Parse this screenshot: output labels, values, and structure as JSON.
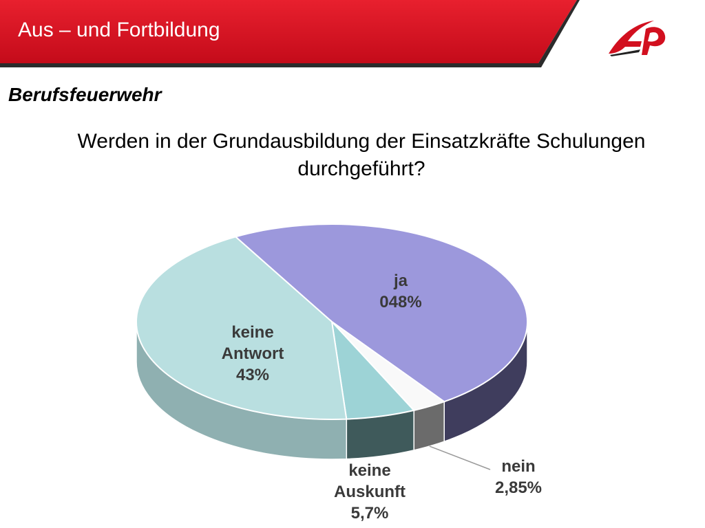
{
  "header": {
    "title": "Aus – und Fortbildung"
  },
  "section_title": "Berufsfeuerwehr",
  "question": "Werden in der Grundausbildung der Einsatzkräfte Schulungen durchgeführt?",
  "chart_data": {
    "type": "pie",
    "title": "",
    "slices": [
      {
        "key": "ja",
        "name": "ja",
        "display": "048%",
        "value": 48.45,
        "color": "#9c98dc",
        "side": "#3f3d5d"
      },
      {
        "key": "nein",
        "name": "nein",
        "display": "2,85%",
        "value": 2.85,
        "color": "#f9f9f9",
        "side": "#6b6b6b"
      },
      {
        "key": "auskunft",
        "name_lines": [
          "keine",
          "Auskunft"
        ],
        "display": "5,7%",
        "value": 5.7,
        "color": "#9dd3d6",
        "side": "#3f5a5b"
      },
      {
        "key": "antwort",
        "name_lines": [
          "keine",
          "Antwort"
        ],
        "display": "43%",
        "value": 43.0,
        "color": "#b9dfe0",
        "side": "#8fb0b1"
      }
    ]
  },
  "labels": {
    "ja": {
      "line1": "ja",
      "line2": "048%"
    },
    "antwort": {
      "line1": "keine",
      "line2": "Antwort",
      "line3": "43%"
    },
    "auskunft": {
      "line1": "keine",
      "line2": "Auskunft",
      "line3": "5,7%"
    },
    "nein": {
      "line1": "nein",
      "line2": "2,85%"
    }
  },
  "colors": {
    "header_red": "#d2101f",
    "header_dark": "#8a0a12"
  }
}
